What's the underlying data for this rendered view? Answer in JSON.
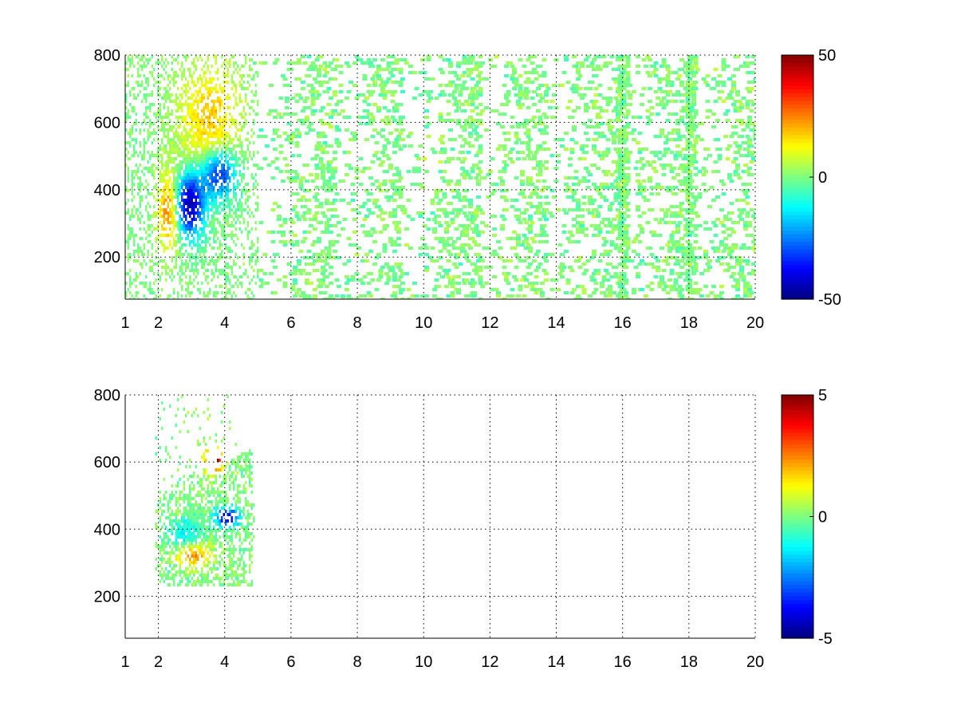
{
  "chart_data": [
    {
      "type": "heatmap",
      "title": "",
      "xlabel": "",
      "ylabel": "",
      "xlim": [
        1,
        20
      ],
      "ylim": [
        75,
        800
      ],
      "x_ticks": [
        "1",
        "2",
        "4",
        "6",
        "8",
        "10",
        "12",
        "14",
        "16",
        "18",
        "20"
      ],
      "x_tick_values": [
        1,
        2,
        4,
        6,
        8,
        10,
        12,
        14,
        16,
        18,
        20
      ],
      "y_ticks": [
        "200",
        "400",
        "600",
        "800"
      ],
      "y_tick_values": [
        200,
        400,
        600,
        800
      ],
      "grid": true,
      "colorbar": {
        "min": -50,
        "max": 50,
        "ticks": [
          "50",
          "0",
          "-50"
        ],
        "tick_values": [
          50,
          0,
          -50
        ],
        "colormap": "jet"
      },
      "features": [
        {
          "description": "dense region",
          "x_range": [
            1,
            5
          ],
          "y_range": [
            220,
            800
          ]
        },
        {
          "description": "negative cluster (blue)",
          "x_center": 2.9,
          "y_center": 380,
          "value": -45
        },
        {
          "description": "positive ridge (orange)",
          "x_center": 2.4,
          "y_center": 360,
          "value": 25
        },
        {
          "description": "scattered near-zero values",
          "x_range": [
            5,
            20
          ],
          "value_range": [
            -10,
            10
          ]
        }
      ]
    },
    {
      "type": "heatmap",
      "title": "",
      "xlabel": "",
      "ylabel": "",
      "xlim": [
        1,
        20
      ],
      "ylim": [
        75,
        800
      ],
      "x_ticks": [
        "1",
        "2",
        "4",
        "6",
        "8",
        "10",
        "12",
        "14",
        "16",
        "18",
        "20"
      ],
      "x_tick_values": [
        1,
        2,
        4,
        6,
        8,
        10,
        12,
        14,
        16,
        18,
        20
      ],
      "y_ticks": [
        "200",
        "400",
        "600",
        "800"
      ],
      "y_tick_values": [
        200,
        400,
        600,
        800
      ],
      "grid": true,
      "colorbar": {
        "min": -5,
        "max": 5,
        "ticks": [
          "5",
          "0",
          "-5"
        ],
        "tick_values": [
          5,
          0,
          -5
        ],
        "colormap": "jet"
      },
      "features": [
        {
          "description": "data region",
          "x_range": [
            1.9,
            4.8
          ],
          "y_range": [
            230,
            800
          ]
        },
        {
          "description": "positive cluster (red)",
          "x_center": 3.6,
          "y_center": 610,
          "value": 5
        },
        {
          "description": "negative streak (blue)",
          "x_center": 4.0,
          "y_center": 440,
          "value": -4
        },
        {
          "description": "positive band (orange)",
          "x_center": 3.0,
          "y_center": 330,
          "value": 2.5
        }
      ]
    }
  ]
}
